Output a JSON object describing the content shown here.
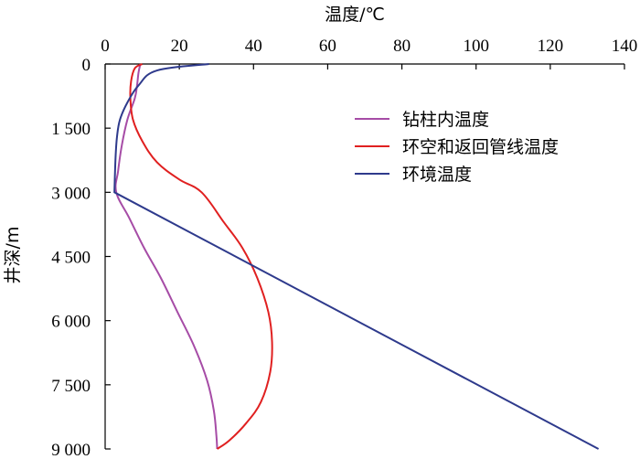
{
  "chart_data": {
    "type": "line",
    "title": "",
    "xlabel": "温度/℃",
    "ylabel": "井深/m",
    "xlim": [
      0,
      140
    ],
    "ylim": [
      0,
      9000
    ],
    "y_inverted": true,
    "x_axis_position": "top",
    "x_ticks": [
      0,
      20,
      40,
      60,
      80,
      100,
      120,
      140
    ],
    "x_tick_labels": [
      "0",
      "20",
      "40",
      "60",
      "80",
      "100",
      "120",
      "140"
    ],
    "y_ticks": [
      0,
      1500,
      3000,
      4500,
      6000,
      7500,
      9000
    ],
    "y_tick_labels": [
      "0",
      "1 500",
      "3 000",
      "4 500",
      "6 000",
      "7 500",
      "9 000"
    ],
    "grid": false,
    "legend_position": "top-right",
    "series": [
      {
        "name": "钻柱内温度",
        "color": "#a64ca6",
        "points": [
          [
            9.5,
            0
          ],
          [
            9.0,
            200
          ],
          [
            8.6,
            500
          ],
          [
            8.0,
            800
          ],
          [
            6.0,
            1300
          ],
          [
            4.5,
            1900
          ],
          [
            3.5,
            2500
          ],
          [
            3.0,
            3000
          ],
          [
            6.5,
            3600
          ],
          [
            10.5,
            4300
          ],
          [
            15.0,
            5000
          ],
          [
            19.5,
            5800
          ],
          [
            24.0,
            6600
          ],
          [
            27.5,
            7400
          ],
          [
            29.3,
            8100
          ],
          [
            30.0,
            8700
          ],
          [
            30.2,
            9000
          ]
        ]
      },
      {
        "name": "环空和返回管线温度",
        "color": "#e02020",
        "points": [
          [
            10.0,
            0
          ],
          [
            8.0,
            100
          ],
          [
            7.0,
            400
          ],
          [
            6.8,
            800
          ],
          [
            7.5,
            1300
          ],
          [
            10.0,
            1800
          ],
          [
            14.0,
            2300
          ],
          [
            20.0,
            2700
          ],
          [
            26.0,
            3000
          ],
          [
            32.0,
            3700
          ],
          [
            37.0,
            4300
          ],
          [
            41.0,
            5000
          ],
          [
            44.0,
            5800
          ],
          [
            45.0,
            6500
          ],
          [
            44.5,
            7200
          ],
          [
            42.0,
            7900
          ],
          [
            38.0,
            8400
          ],
          [
            33.5,
            8800
          ],
          [
            30.2,
            9000
          ]
        ]
      },
      {
        "name": "环境温度",
        "color": "#2e3a8c",
        "points": [
          [
            28.0,
            0
          ],
          [
            14.0,
            150
          ],
          [
            9.0,
            500
          ],
          [
            6.0,
            900
          ],
          [
            4.0,
            1300
          ],
          [
            3.2,
            1700
          ],
          [
            2.8,
            2200
          ],
          [
            2.5,
            3000
          ],
          [
            133.0,
            9000
          ]
        ]
      }
    ]
  }
}
